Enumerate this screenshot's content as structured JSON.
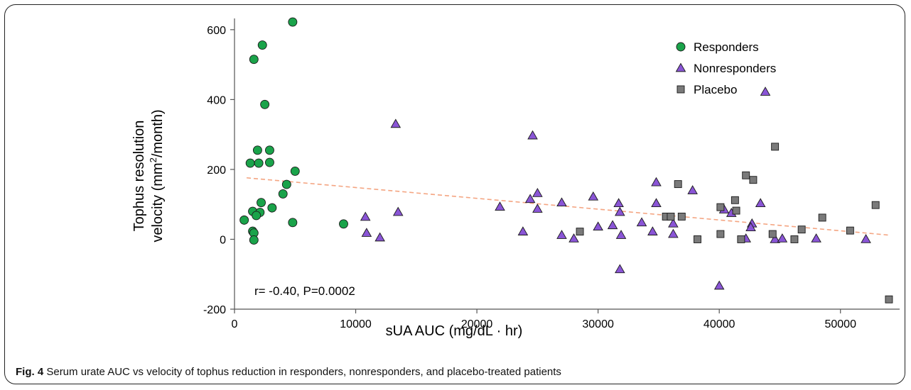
{
  "caption": {
    "label": "Fig. 4",
    "text": "Serum urate AUC vs velocity of tophus reduction in responders, nonresponders, and placebo-treated patients"
  },
  "chart_data": {
    "type": "scatter",
    "xlabel": "sUA AUC (mg/dL · hr)",
    "ylabel_line1": "Tophus resolution",
    "ylabel_line2_pre": "velocity (mm",
    "ylabel_sup": "2",
    "ylabel_line2_post": "/month)",
    "xlim": [
      0,
      55000
    ],
    "ylim": [
      -200,
      620
    ],
    "xticks": [
      0,
      10000,
      20000,
      30000,
      40000,
      50000
    ],
    "yticks": [
      -200,
      0,
      200,
      400,
      600
    ],
    "legend_position": "top-right",
    "annotation": "r= -0.40, P=0.0002",
    "trendline": {
      "x": [
        1000,
        54000
      ],
      "y": [
        176,
        12
      ],
      "color": "#f4a582"
    },
    "series": [
      {
        "name": "Responders",
        "marker": "circle",
        "color": "#1aa34a",
        "points": [
          [
            4800,
            622
          ],
          [
            2300,
            556
          ],
          [
            1600,
            515
          ],
          [
            2500,
            386
          ],
          [
            1300,
            218
          ],
          [
            2000,
            218
          ],
          [
            2900,
            220
          ],
          [
            1900,
            255
          ],
          [
            2900,
            255
          ],
          [
            5000,
            195
          ],
          [
            4300,
            157
          ],
          [
            4000,
            130
          ],
          [
            2200,
            105
          ],
          [
            3100,
            90
          ],
          [
            1500,
            80
          ],
          [
            2100,
            77
          ],
          [
            1800,
            68
          ],
          [
            800,
            55
          ],
          [
            4800,
            48
          ],
          [
            9000,
            44
          ],
          [
            1500,
            23
          ],
          [
            1600,
            18
          ],
          [
            1600,
            -2
          ]
        ]
      },
      {
        "name": "Nonresponders",
        "marker": "triangle",
        "color": "#8a55d6",
        "points": [
          [
            13300,
            330
          ],
          [
            24600,
            297
          ],
          [
            43800,
            422
          ],
          [
            34800,
            163
          ],
          [
            37800,
            140
          ],
          [
            25000,
            132
          ],
          [
            29600,
            122
          ],
          [
            27000,
            105
          ],
          [
            31700,
            103
          ],
          [
            34800,
            103
          ],
          [
            43400,
            103
          ],
          [
            21900,
            93
          ],
          [
            40400,
            85
          ],
          [
            41000,
            75
          ],
          [
            13500,
            78
          ],
          [
            24400,
            115
          ],
          [
            10800,
            64
          ],
          [
            25000,
            87
          ],
          [
            31800,
            78
          ],
          [
            33600,
            48
          ],
          [
            36200,
            45
          ],
          [
            42700,
            45
          ],
          [
            31200,
            40
          ],
          [
            30000,
            36
          ],
          [
            42600,
            34
          ],
          [
            23800,
            22
          ],
          [
            34500,
            22
          ],
          [
            10900,
            18
          ],
          [
            36200,
            15
          ],
          [
            27000,
            12
          ],
          [
            31900,
            12
          ],
          [
            12000,
            5
          ],
          [
            28000,
            2
          ],
          [
            42200,
            2
          ],
          [
            44600,
            0
          ],
          [
            45200,
            2
          ],
          [
            48000,
            2
          ],
          [
            52100,
            0
          ],
          [
            31800,
            -86
          ],
          [
            40000,
            -133
          ]
        ]
      },
      {
        "name": "Placebo",
        "marker": "square",
        "color": "#7a7a7a",
        "points": [
          [
            44600,
            265
          ],
          [
            42200,
            183
          ],
          [
            42800,
            170
          ],
          [
            36600,
            158
          ],
          [
            41300,
            112
          ],
          [
            52900,
            98
          ],
          [
            40100,
            92
          ],
          [
            41400,
            82
          ],
          [
            35600,
            65
          ],
          [
            36000,
            65
          ],
          [
            36900,
            65
          ],
          [
            48500,
            62
          ],
          [
            46800,
            28
          ],
          [
            50800,
            25
          ],
          [
            28500,
            22
          ],
          [
            40100,
            15
          ],
          [
            44400,
            15
          ],
          [
            38200,
            0
          ],
          [
            41800,
            0
          ],
          [
            46200,
            0
          ],
          [
            54000,
            -172
          ]
        ]
      }
    ]
  }
}
